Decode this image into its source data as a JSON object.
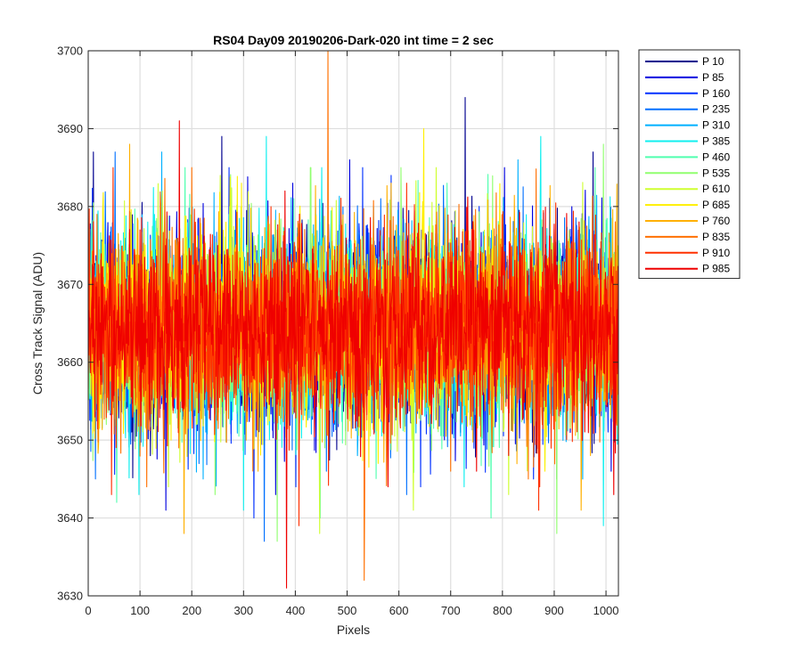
{
  "chart_data": {
    "type": "line",
    "title": "RS04 Day09 20190206-Dark-020 int time = 2 sec",
    "xlabel": "Pixels",
    "ylabel": "Cross Track Signal (ADU)",
    "xlim": [
      0,
      1024
    ],
    "ylim": [
      3630,
      3700
    ],
    "xticks": [
      0,
      100,
      200,
      300,
      400,
      500,
      600,
      700,
      800,
      900,
      1000
    ],
    "yticks": [
      3630,
      3640,
      3650,
      3660,
      3670,
      3680,
      3690,
      3700
    ],
    "grid": true,
    "legend_position": "outside-top-right",
    "n_points": 1024,
    "mean_level": 3664.5,
    "series": [
      {
        "name": "P 10",
        "color": "#00008f",
        "spikes": [
          [
            10,
            3687
          ],
          [
            258,
            3689
          ],
          [
            728,
            3694
          ],
          [
            975,
            3687
          ],
          [
            120,
            3648
          ],
          [
            905,
            3645
          ]
        ]
      },
      {
        "name": "P 85",
        "color": "#0000df",
        "spikes": [
          [
            395,
            3683
          ],
          [
            505,
            3686
          ],
          [
            150,
            3641
          ],
          [
            362,
            3643
          ],
          [
            1010,
            3646
          ]
        ]
      },
      {
        "name": "P 160",
        "color": "#0030ff",
        "spikes": [
          [
            272,
            3685
          ],
          [
            585,
            3684
          ],
          [
            320,
            3640
          ],
          [
            642,
            3644
          ],
          [
            860,
            3645
          ]
        ]
      },
      {
        "name": "P 235",
        "color": "#0070ff",
        "spikes": [
          [
            52,
            3687
          ],
          [
            565,
            3681
          ],
          [
            340,
            3637
          ],
          [
            460,
            3646
          ],
          [
            615,
            3643
          ]
        ]
      },
      {
        "name": "P 310",
        "color": "#00b0ff",
        "spikes": [
          [
            142,
            3687
          ],
          [
            830,
            3686
          ],
          [
            222,
            3645
          ],
          [
            520,
            3648
          ],
          [
            955,
            3645
          ]
        ]
      },
      {
        "name": "P 385",
        "color": "#10efef",
        "spikes": [
          [
            344,
            3689
          ],
          [
            874,
            3689
          ],
          [
            98,
            3643
          ],
          [
            300,
            3641
          ],
          [
            995,
            3639
          ]
        ]
      },
      {
        "name": "P 460",
        "color": "#50ffaf",
        "spikes": [
          [
            187,
            3685
          ],
          [
            693,
            3683
          ],
          [
            55,
            3642
          ],
          [
            448,
            3640
          ],
          [
            778,
            3640
          ]
        ]
      },
      {
        "name": "P 535",
        "color": "#90ff6f",
        "spikes": [
          [
            429,
            3685
          ],
          [
            995,
            3688
          ],
          [
            245,
            3643
          ],
          [
            365,
            3637
          ],
          [
            905,
            3638
          ]
        ]
      },
      {
        "name": "P 610",
        "color": "#cfff30",
        "spikes": [
          [
            255,
            3684
          ],
          [
            672,
            3685
          ],
          [
            447,
            3638
          ],
          [
            628,
            3641
          ],
          [
            812,
            3643
          ]
        ]
      },
      {
        "name": "P 685",
        "color": "#ffef00",
        "spikes": [
          [
            296,
            3683
          ],
          [
            648,
            3690
          ],
          [
            160,
            3650
          ],
          [
            560,
            3647
          ],
          [
            882,
            3646
          ]
        ]
      },
      {
        "name": "P 760",
        "color": "#ffb000",
        "spikes": [
          [
            80,
            3688
          ],
          [
            585,
            3683
          ],
          [
            185,
            3638
          ],
          [
            328,
            3646
          ],
          [
            952,
            3641
          ]
        ]
      },
      {
        "name": "P 835",
        "color": "#ff7000",
        "spikes": [
          [
            463,
            3700
          ],
          [
            200,
            3685
          ],
          [
            533,
            3632
          ],
          [
            700,
            3646
          ],
          [
            850,
            3645
          ]
        ]
      },
      {
        "name": "P 910",
        "color": "#ff3000",
        "spikes": [
          [
            48,
            3685
          ],
          [
            615,
            3683
          ],
          [
            45,
            3643
          ],
          [
            407,
            3639
          ],
          [
            870,
            3641
          ]
        ]
      },
      {
        "name": "P 985",
        "color": "#ef0000",
        "spikes": [
          [
            176,
            3691
          ],
          [
            380,
            3682
          ],
          [
            383,
            3631
          ],
          [
            750,
            3646
          ],
          [
            1015,
            3643
          ]
        ]
      }
    ]
  }
}
